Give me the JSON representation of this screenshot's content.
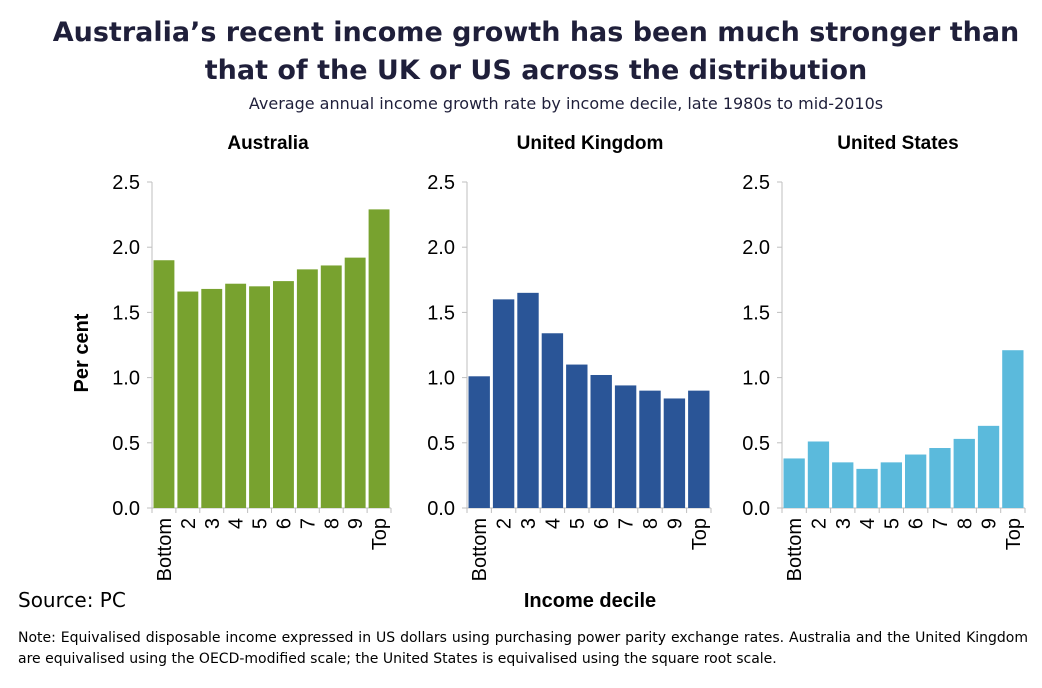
{
  "title": "Australia’s recent income growth has been much stronger than that of the UK or US across the distribution",
  "subtitle": "Average annual income growth rate by income decile, late 1980s to mid-2010s",
  "source": "Source: PC",
  "note": "Note: Equivalised disposable income expressed in US dollars using purchasing power parity exchange rates. Australia and the United Kingdom are equivalised using the OECD-modified scale; the United States is equivalised using the square root scale.",
  "chart_data": [
    {
      "type": "bar",
      "title": "Australia",
      "ylabel": "Per cent",
      "xlabel": "",
      "categories": [
        "Bottom",
        "2",
        "3",
        "4",
        "5",
        "6",
        "7",
        "8",
        "9",
        "Top"
      ],
      "values": [
        1.9,
        1.66,
        1.68,
        1.72,
        1.7,
        1.74,
        1.83,
        1.86,
        1.92,
        2.29
      ],
      "ylim": [
        0,
        2.5
      ],
      "yticks": [
        "0.0",
        "0.5",
        "1.0",
        "1.5",
        "2.0",
        "2.5"
      ],
      "color": "#78a22f"
    },
    {
      "type": "bar",
      "title": "United Kingdom",
      "ylabel": "",
      "xlabel": "Income decile",
      "categories": [
        "Bottom",
        "2",
        "3",
        "4",
        "5",
        "6",
        "7",
        "8",
        "9",
        "Top"
      ],
      "values": [
        1.01,
        1.6,
        1.65,
        1.34,
        1.1,
        1.02,
        0.94,
        0.9,
        0.84,
        0.9
      ],
      "ylim": [
        0,
        2.5
      ],
      "yticks": [
        "0.0",
        "0.5",
        "1.0",
        "1.5",
        "2.0",
        "2.5"
      ],
      "color": "#2a5597"
    },
    {
      "type": "bar",
      "title": "United States",
      "ylabel": "",
      "xlabel": "",
      "categories": [
        "Bottom",
        "2",
        "3",
        "4",
        "5",
        "6",
        "7",
        "8",
        "9",
        "Top"
      ],
      "values": [
        0.38,
        0.51,
        0.35,
        0.3,
        0.35,
        0.41,
        0.46,
        0.53,
        0.63,
        1.21
      ],
      "ylim": [
        0,
        2.5
      ],
      "yticks": [
        "0.0",
        "0.5",
        "1.0",
        "1.5",
        "2.0",
        "2.5"
      ],
      "color": "#5bbadc"
    }
  ]
}
